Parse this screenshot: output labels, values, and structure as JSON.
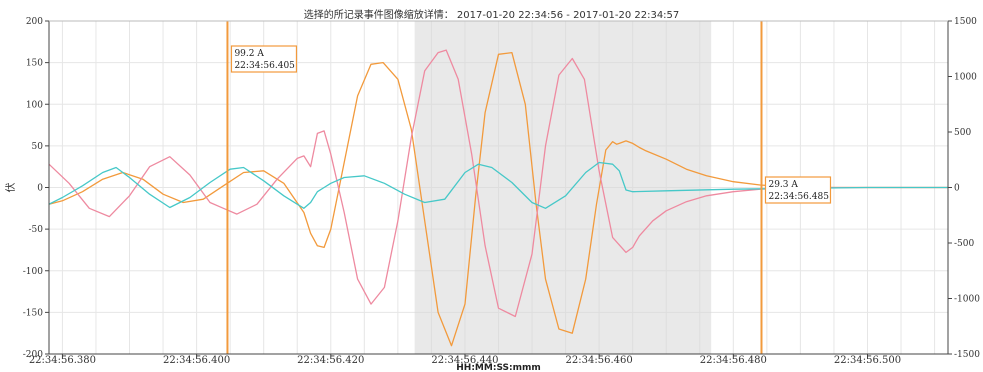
{
  "chart_data": {
    "type": "line",
    "title": "选择的所记录事件图像缩放详情： 2017-01-20 22:34:56 - 2017-01-20 22:34:57",
    "xlabel": "HH:MM:SS:mmm",
    "ylabel_left": "伏",
    "ylim_left": [
      -200,
      200
    ],
    "ylim_right": [
      -1500,
      1500
    ],
    "left_ticks": [
      200,
      150,
      100,
      50,
      0,
      -50,
      -100,
      -150,
      -200
    ],
    "right_ticks": [
      1500,
      1000,
      500,
      0,
      -500,
      -1000,
      -1500
    ],
    "x_range_ms": [
      378,
      512
    ],
    "x_tick_labels": [
      {
        "ms": 380,
        "label": "22:34:56.380"
      },
      {
        "ms": 400,
        "label": "22:34:56.400"
      },
      {
        "ms": 420,
        "label": "22:34:56.420"
      },
      {
        "ms": 440,
        "label": "22:34:56.440"
      },
      {
        "ms": 460,
        "label": "22:34:56.460"
      },
      {
        "ms": 480,
        "label": "22:34:56.480"
      },
      {
        "ms": 500,
        "label": "22:34:56.500"
      }
    ],
    "grid": true,
    "shaded_region_ms": [
      432.5,
      476.7
    ],
    "cursors": [
      {
        "ms": 404.6,
        "value": "99.2 A",
        "time": "22:34:56.405"
      },
      {
        "ms": 484.2,
        "value": "29.3 A",
        "time": "22:34:56.485"
      }
    ],
    "series": [
      {
        "color": "#f29a3c",
        "axis": "left",
        "x": [
          378,
          380,
          383,
          386,
          389,
          392,
          395,
          398,
          401,
          404,
          407,
          410,
          413,
          416,
          417,
          418,
          419,
          420,
          422,
          424,
          426,
          427.8,
          430,
          432,
          434,
          436,
          438,
          440,
          441.6,
          443,
          445,
          447,
          449,
          450.6,
          452,
          454,
          456,
          458,
          459.6,
          461,
          462,
          462.6,
          463,
          464,
          465,
          466,
          467,
          470,
          473,
          476,
          480,
          484,
          488,
          495,
          505,
          512
        ],
        "y": [
          -20,
          -16,
          -5,
          10,
          18,
          10,
          -8,
          -18,
          -14,
          2,
          18,
          20,
          5,
          -30,
          -55,
          -70,
          -72,
          -50,
          30,
          110,
          148,
          150,
          130,
          70,
          -40,
          -150,
          -190,
          -140,
          -10,
          90,
          160,
          162,
          100,
          -20,
          -110,
          -170,
          -175,
          -110,
          -20,
          45,
          55,
          52,
          53,
          56,
          53,
          48,
          44,
          34,
          22,
          14,
          7,
          3,
          1,
          0,
          0,
          0
        ]
      },
      {
        "color": "#ee8aa0",
        "axis": "left",
        "x": [
          378,
          381,
          384,
          387,
          390,
          393,
          396,
          399,
          402,
          404,
          406,
          409,
          412,
          415,
          416,
          417,
          418,
          419,
          420,
          422,
          424,
          426,
          428,
          430,
          432,
          434,
          436,
          437.2,
          439,
          441,
          443,
          445,
          447.5,
          450,
          452,
          454,
          456,
          457.8,
          460,
          462,
          464,
          465,
          465.5,
          466,
          468,
          470,
          473,
          476,
          480,
          484,
          488,
          495,
          505,
          512
        ],
        "y": [
          28,
          5,
          -25,
          -35,
          -10,
          25,
          37,
          15,
          -18,
          -25,
          -32,
          -20,
          10,
          35,
          38,
          25,
          65,
          68,
          40,
          -30,
          -110,
          -140,
          -120,
          -40,
          60,
          140,
          162,
          165,
          130,
          40,
          -70,
          -145,
          -155,
          -80,
          50,
          135,
          155,
          130,
          20,
          -60,
          -78,
          -72,
          -65,
          -58,
          -40,
          -28,
          -17,
          -10,
          -5,
          -2,
          -1,
          0,
          0,
          0
        ]
      },
      {
        "color": "#46c8c8",
        "axis": "left",
        "x": [
          378,
          380,
          383,
          386,
          388,
          390,
          393,
          396,
          399,
          402,
          405,
          407,
          410,
          413,
          415,
          416,
          417,
          418,
          419,
          420,
          422,
          425,
          428,
          431,
          434,
          437,
          440,
          442,
          444,
          447,
          450,
          452,
          455,
          458,
          460,
          462,
          463,
          464,
          465,
          470,
          480,
          490,
          500,
          512
        ],
        "y": [
          -20,
          -12,
          2,
          18,
          24,
          12,
          -8,
          -24,
          -12,
          6,
          22,
          24,
          8,
          -10,
          -20,
          -25,
          -18,
          -5,
          0,
          5,
          12,
          14,
          5,
          -8,
          -18,
          -14,
          18,
          28,
          24,
          6,
          -18,
          -25,
          -10,
          18,
          30,
          28,
          20,
          -3,
          -5,
          -4,
          -2,
          -1,
          0,
          0
        ]
      }
    ]
  }
}
